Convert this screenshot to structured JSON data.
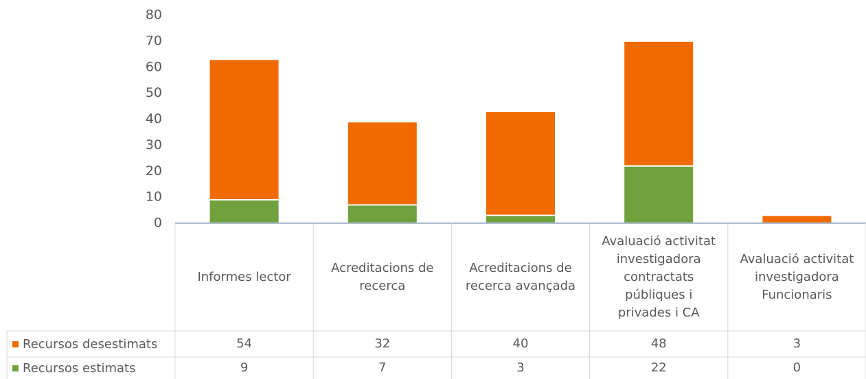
{
  "chart_data": {
    "type": "stacked_bar",
    "categories": [
      "Informes lector",
      "Acreditacions de recerca",
      "Acreditacions de recerca avançada",
      "Avaluació activitat investigadora contractats públiques i privades i CA",
      "Avaluació activitat investigadora Funcionaris"
    ],
    "series": [
      {
        "name": "Recursos desestimats",
        "color": "#f06a00",
        "values": [
          54,
          32,
          40,
          48,
          3
        ]
      },
      {
        "name": "Recursos estimats",
        "color": "#70a13c",
        "values": [
          9,
          7,
          3,
          22,
          0
        ]
      }
    ],
    "ylim": [
      0,
      80
    ],
    "yticks": [
      0,
      10,
      20,
      30,
      40,
      50,
      60,
      70,
      80
    ],
    "grid": false,
    "legend": "data-table"
  }
}
